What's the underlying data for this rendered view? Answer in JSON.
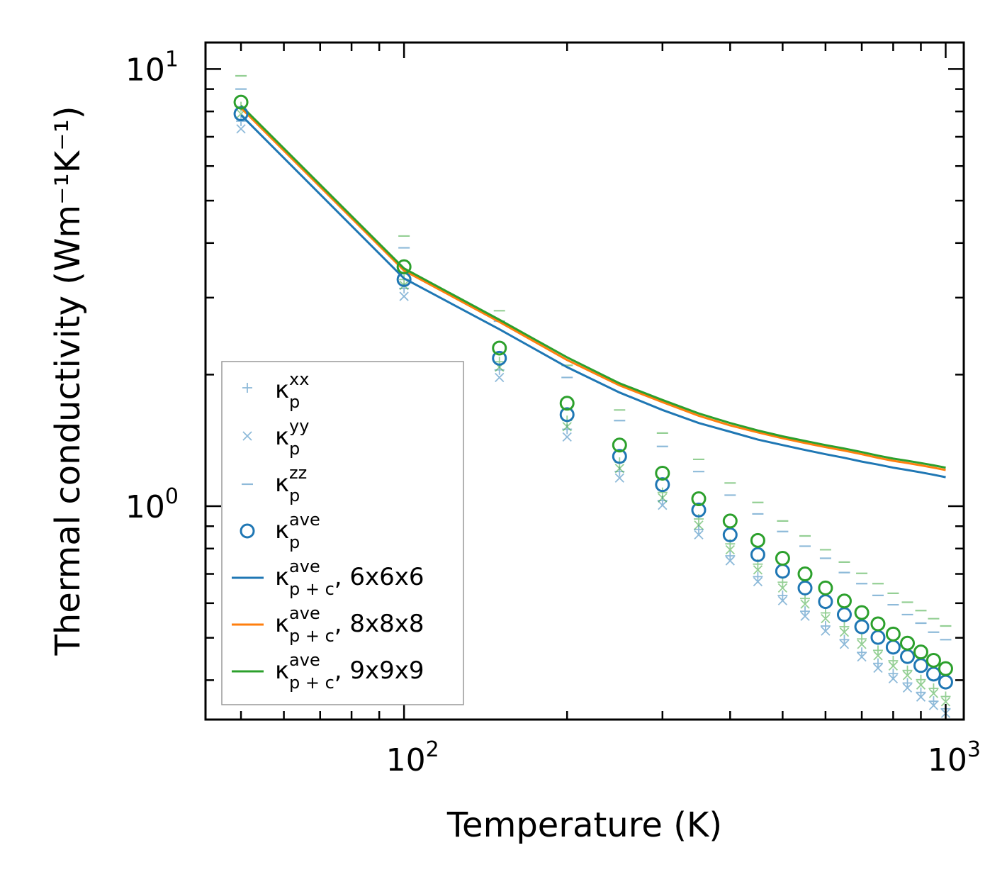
{
  "chart_data": {
    "type": "scatter",
    "xscale": "log",
    "yscale": "log",
    "xlim": [
      43,
      1080
    ],
    "ylim": [
      0.325,
      11.5
    ],
    "xlabel": "Temperature (K)",
    "ylabel": "Thermal conductivity (Wm⁻¹K⁻¹)",
    "x_ticks": [
      {
        "value": 100,
        "base": "10",
        "exp": "2"
      },
      {
        "value": 1000,
        "base": "10",
        "exp": "3"
      }
    ],
    "y_ticks": [
      {
        "value": 1,
        "base": "10",
        "exp": "0"
      },
      {
        "value": 10,
        "base": "10",
        "exp": "1"
      }
    ],
    "temperatures": [
      50,
      100,
      150,
      200,
      250,
      300,
      350,
      400,
      450,
      500,
      550,
      600,
      650,
      700,
      750,
      800,
      850,
      900,
      950,
      1000
    ],
    "grids": [
      {
        "name": "6x6x6",
        "color": "#1f77b4",
        "kxx": [
          7.6,
          3.15,
          2.05,
          1.5,
          1.2,
          1.03,
          0.885,
          0.77,
          0.69,
          0.625,
          0.575,
          0.532,
          0.495,
          0.463,
          0.437,
          0.414,
          0.394,
          0.375,
          0.358,
          0.344
        ],
        "kyy": [
          7.3,
          3.02,
          1.97,
          1.44,
          1.16,
          1.005,
          0.86,
          0.75,
          0.672,
          0.608,
          0.56,
          0.518,
          0.483,
          0.452,
          0.426,
          0.403,
          0.384,
          0.366,
          0.35,
          0.336
        ],
        "kzz": [
          9.0,
          3.9,
          2.65,
          1.97,
          1.57,
          1.37,
          1.2,
          1.06,
          0.96,
          0.875,
          0.81,
          0.76,
          0.705,
          0.665,
          0.625,
          0.595,
          0.565,
          0.54,
          0.515,
          0.495
        ],
        "kave": [
          7.9,
          3.3,
          2.18,
          1.62,
          1.3,
          1.12,
          0.98,
          0.86,
          0.775,
          0.71,
          0.65,
          0.605,
          0.565,
          0.53,
          0.501,
          0.476,
          0.453,
          0.432,
          0.413,
          0.396
        ],
        "kpc": [
          7.85,
          3.32,
          2.54,
          2.08,
          1.82,
          1.66,
          1.55,
          1.48,
          1.42,
          1.38,
          1.345,
          1.315,
          1.29,
          1.265,
          1.245,
          1.225,
          1.21,
          1.195,
          1.18,
          1.165
        ]
      },
      {
        "name": "8x8x8",
        "color": "#ff7f0e",
        "kpc": [
          8.15,
          3.46,
          2.64,
          2.16,
          1.89,
          1.73,
          1.61,
          1.53,
          1.475,
          1.43,
          1.395,
          1.365,
          1.34,
          1.315,
          1.29,
          1.27,
          1.255,
          1.24,
          1.225,
          1.21
        ]
      },
      {
        "name": "9x9x9",
        "color": "#2ca02c",
        "kxx": [
          8.2,
          3.3,
          2.14,
          1.57,
          1.26,
          1.075,
          0.935,
          0.82,
          0.737,
          0.67,
          0.615,
          0.57,
          0.53,
          0.497,
          0.468,
          0.443,
          0.421,
          0.401,
          0.383,
          0.367
        ],
        "kyy": [
          7.9,
          3.2,
          2.08,
          1.52,
          1.22,
          1.045,
          0.905,
          0.795,
          0.715,
          0.65,
          0.597,
          0.553,
          0.515,
          0.483,
          0.455,
          0.431,
          0.41,
          0.39,
          0.373,
          0.357
        ],
        "kzz": [
          9.65,
          4.15,
          2.8,
          2.1,
          1.66,
          1.47,
          1.28,
          1.13,
          1.02,
          0.925,
          0.855,
          0.795,
          0.745,
          0.702,
          0.665,
          0.632,
          0.603,
          0.577,
          0.553,
          0.532
        ],
        "kave": [
          8.4,
          3.53,
          2.3,
          1.72,
          1.38,
          1.19,
          1.04,
          0.925,
          0.835,
          0.76,
          0.7,
          0.65,
          0.607,
          0.571,
          0.538,
          0.51,
          0.486,
          0.464,
          0.444,
          0.425
        ],
        "kpc": [
          8.25,
          3.5,
          2.67,
          2.19,
          1.91,
          1.75,
          1.63,
          1.55,
          1.49,
          1.445,
          1.41,
          1.38,
          1.355,
          1.33,
          1.305,
          1.285,
          1.27,
          1.255,
          1.24,
          1.225
        ]
      }
    ],
    "legend": {
      "placement": "lower-left",
      "entries": [
        {
          "marker": "plus",
          "color": "#1f77b4",
          "symbol": "κ",
          "sub": "p",
          "sup": "xx",
          "suffix": ""
        },
        {
          "marker": "x",
          "color": "#1f77b4",
          "symbol": "κ",
          "sub": "p",
          "sup": "yy",
          "suffix": ""
        },
        {
          "marker": "hline",
          "color": "#1f77b4",
          "symbol": "κ",
          "sub": "p",
          "sup": "zz",
          "suffix": ""
        },
        {
          "marker": "circle",
          "color": "#1f77b4",
          "symbol": "κ",
          "sub": "p",
          "sup": "ave",
          "suffix": ""
        },
        {
          "marker": "line",
          "color": "#1f77b4",
          "symbol": "κ",
          "sub": "p + c",
          "sup": "ave",
          "suffix": ", 6x6x6"
        },
        {
          "marker": "line",
          "color": "#ff7f0e",
          "symbol": "κ",
          "sub": "p + c",
          "sup": "ave",
          "suffix": ", 8x8x8"
        },
        {
          "marker": "line",
          "color": "#2ca02c",
          "symbol": "κ",
          "sub": "p + c",
          "sup": "ave",
          "suffix": ", 9x9x9"
        }
      ]
    }
  }
}
